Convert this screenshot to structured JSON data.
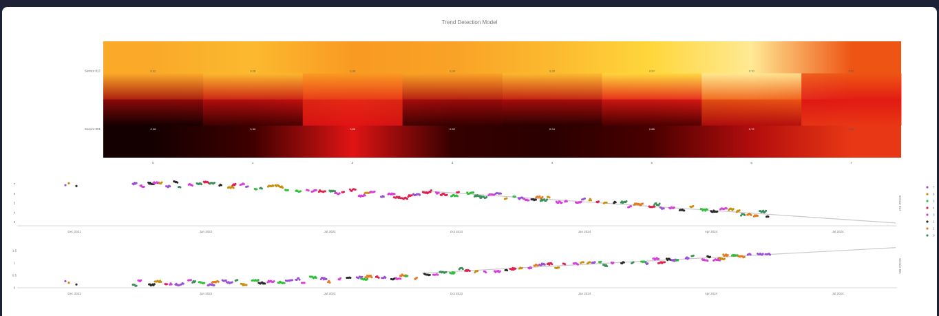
{
  "page": {
    "title": "Trend Detection Model"
  },
  "chart_data": [
    {
      "type": "heatmap",
      "title": "Trend Detection Model",
      "y_categories": [
        "Sensor 817",
        "Sensor 801"
      ],
      "x_categories": [
        "0",
        "1",
        "2",
        "3",
        "4",
        "5",
        "6",
        "7"
      ],
      "values": [
        [
          0.32,
          0.28,
          0.36,
          0.34,
          0.28,
          0.2,
          0.1,
          0.52
        ],
        [
          0.98,
          0.9,
          0.65,
          0.92,
          0.94,
          0.88,
          0.72,
          0.58
        ]
      ],
      "cell_labels": [
        [
          "0.32",
          "0.28",
          "0.36",
          "0.34",
          "0.28",
          "0.20",
          "0.10",
          "0.52"
        ],
        [
          "0.98",
          "0.90",
          "0.65",
          "0.92",
          "0.94",
          "0.88",
          "0.72",
          "0.58"
        ]
      ],
      "colorscale": "hot (light yellow → orange → red → black)"
    },
    {
      "type": "scatter",
      "ylabel": "Sensor 817",
      "ylim": [
        2.6,
        7.4
      ],
      "yticks": [
        "3",
        "4",
        "5",
        "6",
        "7"
      ],
      "xtick_labels": [
        "Dec 2021",
        "Jan 2022",
        "Jul 2022",
        "Oct 2023",
        "Jan 2024",
        "Apr 2024",
        "Jul 2024"
      ],
      "trend": {
        "start": 6.3,
        "end": 2.9
      },
      "legend": [
        "7",
        "6",
        "5",
        "4",
        "3",
        "2",
        "1",
        "0"
      ],
      "series_colors": [
        "#9b4fd6",
        "#c8900e",
        "#2fbf3a",
        "#e0204d",
        "#d83fd8",
        "#2a2a2a",
        "#e57b1f",
        "#3b8f5a"
      ]
    },
    {
      "type": "scatter",
      "ylabel": "Sensor 801",
      "ylim": [
        0,
        1.75
      ],
      "yticks": [
        "0",
        "0.5",
        "1",
        "1.5"
      ],
      "xtick_labels": [
        "Dec 2021",
        "Jan 2022",
        "Jul 2022",
        "Oct 2023",
        "Jan 2024",
        "Apr 2024",
        "Jul 2024"
      ],
      "trend": {
        "start": 0.05,
        "end": 1.62
      }
    }
  ]
}
